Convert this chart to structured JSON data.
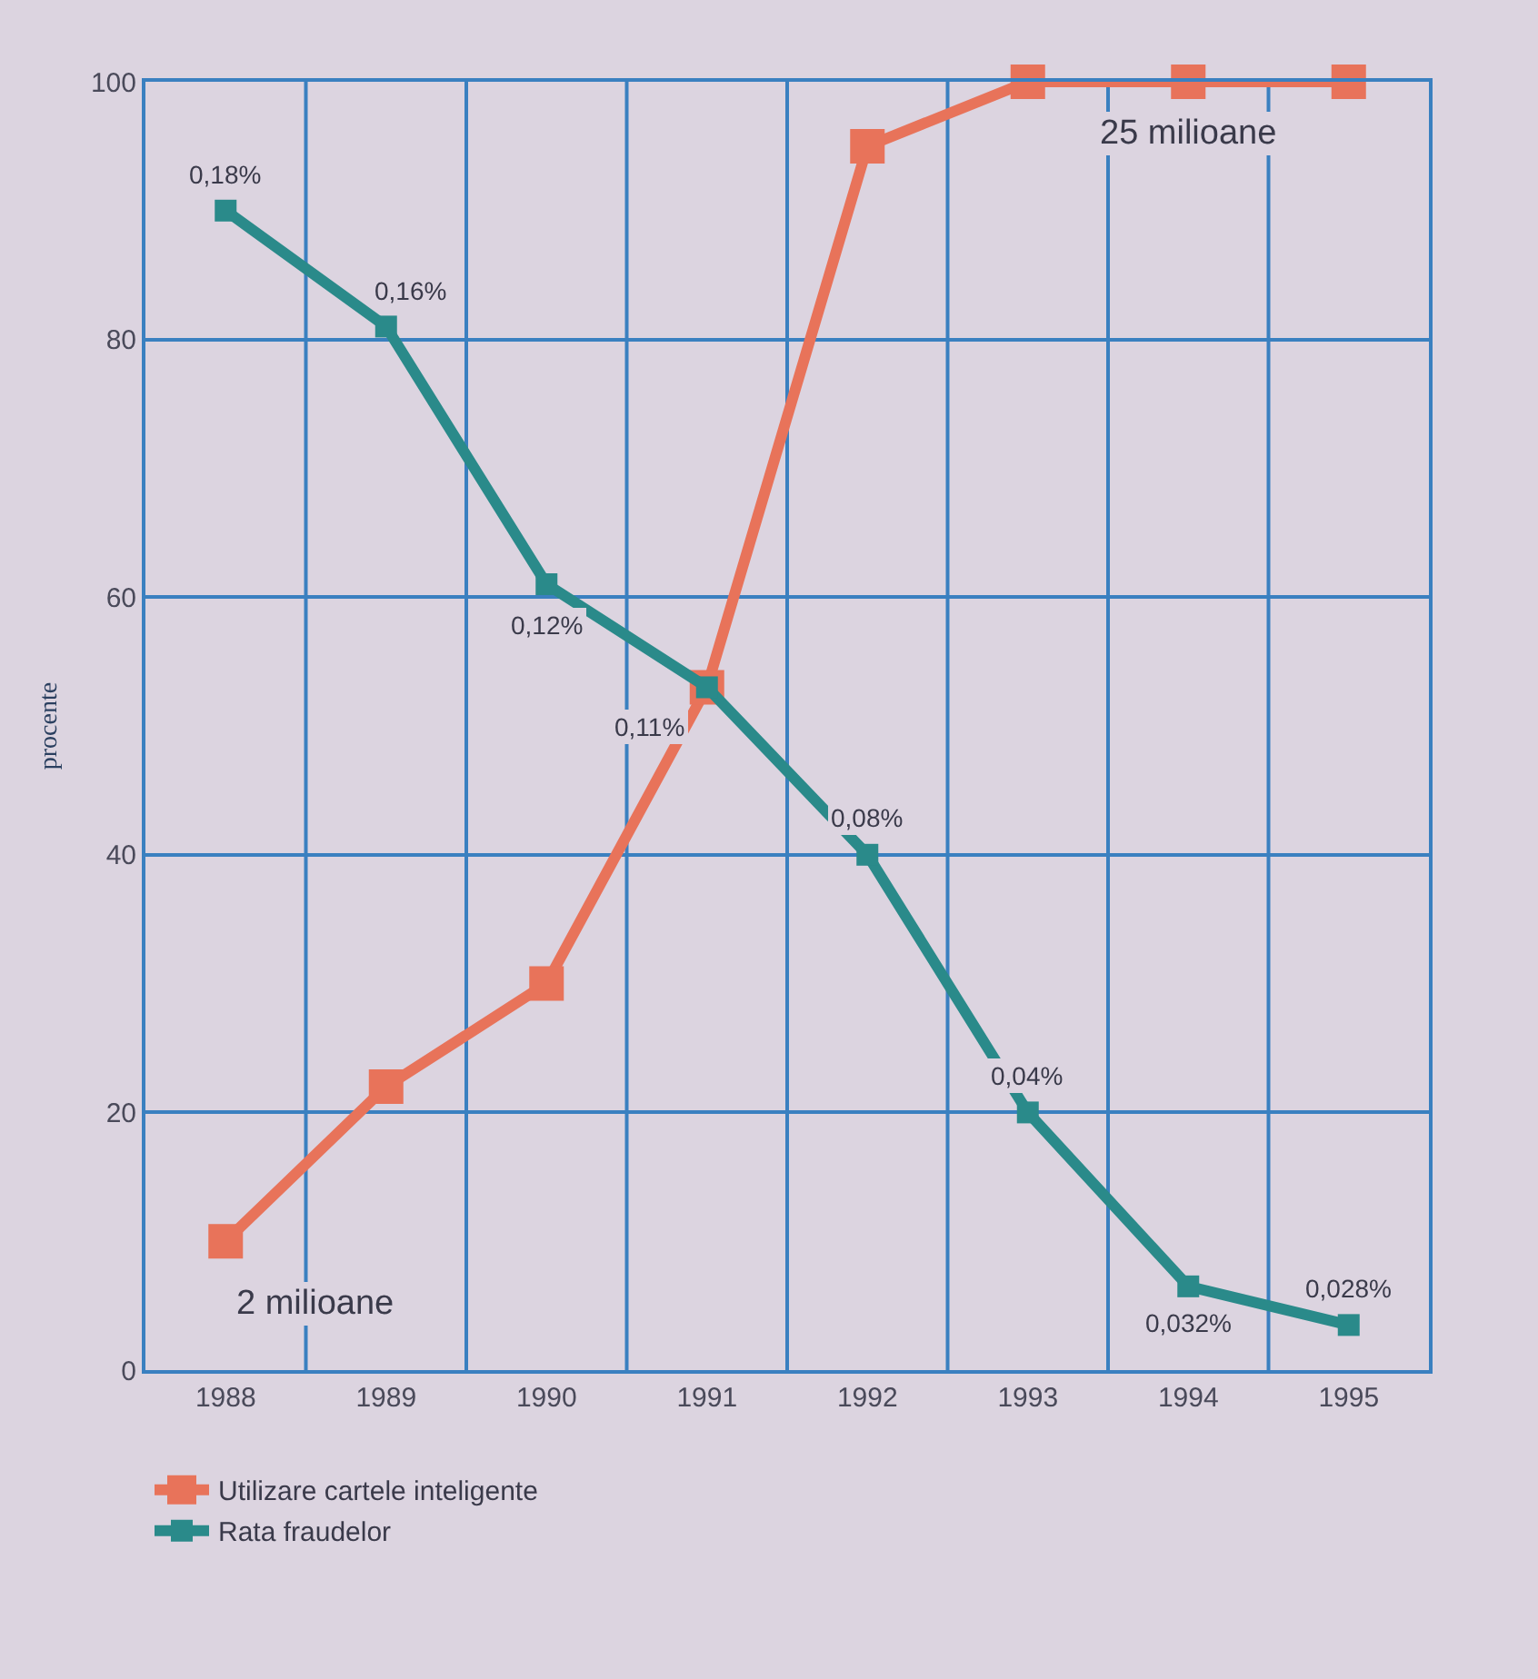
{
  "chart_data": {
    "type": "line",
    "categories": [
      "1988",
      "1989",
      "1990",
      "1991",
      "1992",
      "1993",
      "1994",
      "1995"
    ],
    "ylabel": "procente",
    "ylim": [
      0,
      100
    ],
    "yticks": [
      0,
      20,
      40,
      60,
      80,
      100
    ],
    "series": [
      {
        "name": "Utilizare cartele inteligente",
        "color": "#e8735a",
        "values": [
          10,
          22,
          30,
          53,
          95,
          100,
          100,
          100
        ]
      },
      {
        "name": "Rata fraudelor",
        "color": "#2a8a8a",
        "values": [
          90,
          81,
          61,
          53,
          40,
          20,
          6.5,
          3.5
        ]
      }
    ],
    "annotations": [
      {
        "text": "2 milioane",
        "x": "1988",
        "y": 10
      },
      {
        "text": "25 milioane",
        "x": "1994",
        "y": 100
      },
      {
        "text": "0,18%",
        "x": "1988",
        "y": 90
      },
      {
        "text": "0,16%",
        "x": "1989",
        "y": 81
      },
      {
        "text": "0,12%",
        "x": "1990",
        "y": 61
      },
      {
        "text": "0,11%",
        "x": "1991",
        "y": 53
      },
      {
        "text": "0,08%",
        "x": "1992",
        "y": 40
      },
      {
        "text": "0,04%",
        "x": "1993",
        "y": 20
      },
      {
        "text": "0,032%",
        "x": "1994",
        "y": 6.5
      },
      {
        "text": "0,028%",
        "x": "1995",
        "y": 3.5
      }
    ],
    "grid": true,
    "legend": "bottom left",
    "marker": "square",
    "line_style": "solid"
  }
}
